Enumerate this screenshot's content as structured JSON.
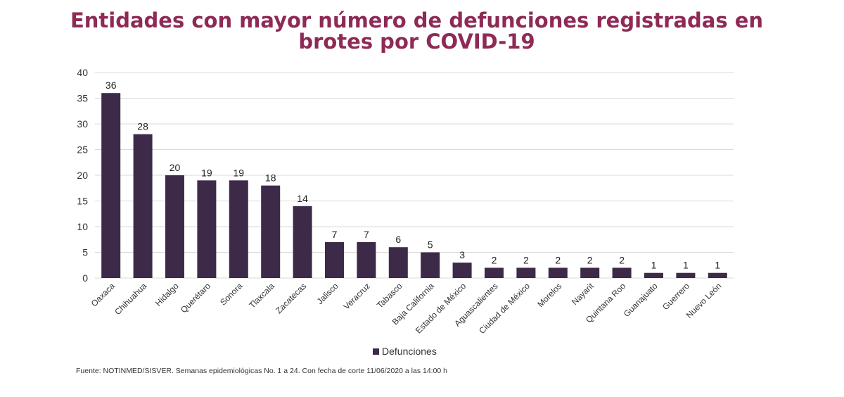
{
  "title_line1": "Entidades con mayor número de defunciones registradas en",
  "title_line2": "brotes por COVID-19",
  "source": "Fuente: NOTINMED/SISVER. Semanas epidemiológicas No. 1 a 24. Con fecha de corte 11/06/2020 a las 14:00 h",
  "colors": {
    "bar": "#3d2a49",
    "title": "#8e2a55",
    "grid": "#d9d9d9"
  },
  "chart_data": {
    "type": "bar",
    "title": "Entidades con mayor número de defunciones registradas en brotes por COVID-19",
    "xlabel": "",
    "ylabel": "",
    "ylim": [
      0,
      40
    ],
    "yticks": [
      0,
      5,
      10,
      15,
      20,
      25,
      30,
      35,
      40
    ],
    "grid": true,
    "legend_position": "bottom",
    "categories": [
      "Oaxaca",
      "Chihuahua",
      "Hidalgo",
      "Querétaro",
      "Sonora",
      "Tlaxcala",
      "Zacatecas",
      "Jalisco",
      "Veracruz",
      "Tabasco",
      "Baja California",
      "Estado de México",
      "Aguascalientes",
      "Ciudad de México",
      "Morelos",
      "Nayarit",
      "Quintana Roo",
      "Guanajuato",
      "Guerrero",
      "Nuevo León"
    ],
    "series": [
      {
        "name": "Defunciones",
        "values": [
          36,
          28,
          20,
          19,
          19,
          18,
          14,
          7,
          7,
          6,
          5,
          3,
          2,
          2,
          2,
          2,
          2,
          1,
          1,
          1
        ]
      }
    ]
  }
}
